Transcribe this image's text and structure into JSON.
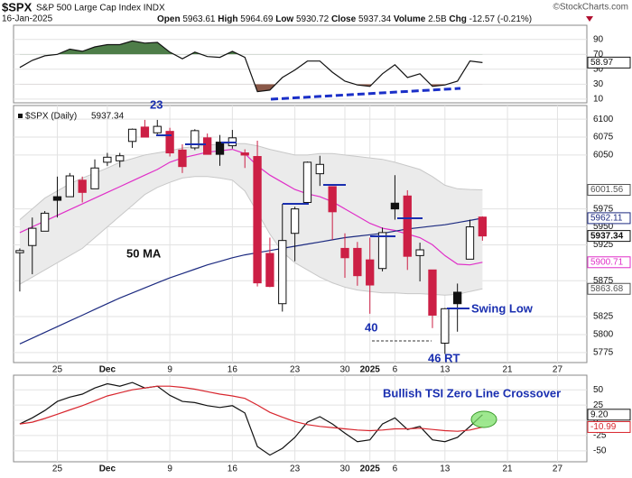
{
  "header": {
    "symbol": "$SPX",
    "name": "S&P 500 Large Cap Index INDX",
    "source": "©StockCharts.com",
    "date": "16-Jan-2025",
    "stats": [
      {
        "label": "Open",
        "value": 5963.61
      },
      {
        "label": "High",
        "value": 5964.69
      },
      {
        "label": "Low",
        "value": 5930.72
      },
      {
        "label": "Close",
        "value": 5937.34
      },
      {
        "label": "Volume",
        "value": "2.5B"
      }
    ],
    "change": {
      "label": "Chg",
      "value": -12.57,
      "pct": "(-0.21%)"
    }
  },
  "annotations": [
    "23",
    "50 MA",
    "40",
    "46 RT",
    "Swing Low",
    "Bullish TSI Zero Line Crossover"
  ],
  "chart_data": [
    {
      "type": "line",
      "x": [
        0,
        1,
        2,
        3,
        4,
        5,
        6,
        7,
        8,
        9,
        10,
        11,
        12,
        13,
        14,
        15,
        16,
        17,
        18,
        19,
        20,
        21,
        22,
        23,
        24,
        25,
        26,
        27,
        28,
        29,
        30,
        31,
        32,
        33,
        34,
        35,
        36,
        37
      ],
      "xlim": [
        -0.5,
        45.35
      ],
      "ylim": [
        5,
        109
      ],
      "yticks": [
        90,
        70,
        50,
        30,
        10
      ],
      "overbought": 70,
      "oversold": 30,
      "overbought_color": "#4e7d49",
      "oversold_color": "#8a5848",
      "series": [
        {
          "color": "#111111",
          "values": [
            52.4,
            62,
            68,
            70,
            77,
            74,
            80,
            83,
            83,
            88,
            85,
            86,
            73,
            64,
            73,
            67,
            66,
            74,
            66,
            20,
            22,
            39,
            49,
            61,
            61,
            46,
            34,
            29,
            27,
            44,
            56,
            39,
            44,
            27,
            29,
            34,
            61,
            58.97
          ]
        }
      ]
    },
    {
      "type": "candlestick",
      "label": "$SPX (Daily)",
      "x": [
        0,
        1,
        2,
        3,
        4,
        5,
        6,
        7,
        8,
        9,
        10,
        11,
        12,
        13,
        14,
        15,
        16,
        17,
        18,
        19,
        20,
        21,
        22,
        23,
        24,
        25,
        26,
        27,
        28,
        29,
        30,
        31,
        32,
        33,
        34,
        35,
        36,
        37
      ],
      "xlim": [
        -0.5,
        45.35
      ],
      "ylim": [
        5761,
        6119
      ],
      "yticks": [
        6100,
        6075,
        6050,
        5975,
        5950,
        5925,
        5875,
        5825,
        5800,
        5775
      ],
      "xticks": [
        {
          "value": 3,
          "label": "25"
        },
        {
          "value": 7,
          "label": "Dec"
        },
        {
          "value": 12,
          "label": "9"
        },
        {
          "value": 17,
          "label": "16"
        },
        {
          "value": 22,
          "label": "23"
        },
        {
          "value": 26,
          "label": "30"
        },
        {
          "value": 28,
          "label": "2025"
        },
        {
          "value": 30,
          "label": "6"
        },
        {
          "value": 34,
          "label": "13"
        },
        {
          "value": 39,
          "label": "21"
        },
        {
          "value": 43,
          "label": "27"
        }
      ],
      "up_color": "#111111",
      "down_color": "#cc1f45",
      "open": [
        5914,
        5924,
        5944,
        5992,
        5992,
        6015,
        6003,
        6040,
        6042,
        6069,
        6089,
        6081,
        6083,
        6057,
        6060,
        6074,
        6068,
        6063,
        6053,
        6048,
        5913,
        5843,
        5941,
        5984,
        6024,
        6006,
        5920,
        5920,
        5904,
        5892,
        5983,
        5993,
        5910,
        5890,
        5788,
        5859,
        5905,
        5963.61
      ],
      "high": [
        5920,
        5963,
        5972,
        6020,
        6025,
        6020,
        6044,
        6053,
        6053,
        6087,
        6099,
        6099,
        6088,
        6065,
        6086,
        6080,
        6078,
        6085,
        6058,
        6070,
        5935,
        5982,
        5978,
        6041,
        6049,
        6006,
        5941,
        5929,
        5935,
        5949,
        6022,
        6001,
        5928,
        5890,
        5837,
        5871,
        5960,
        5964.69
      ],
      "low": [
        5860,
        5884,
        5944,
        5963,
        5993,
        5984,
        6003,
        6035,
        6033,
        6060,
        6076,
        6079,
        6048,
        6025,
        6057,
        6051,
        6035,
        6059,
        6032,
        5867,
        5866,
        5832,
        5902,
        5983,
        6007,
        5932,
        5879,
        5868,
        5829,
        5888,
        5960,
        5890,
        5874,
        5809,
        5773,
        5804,
        5905,
        5930.72
      ],
      "close": [
        5917,
        5948,
        5969,
        5987,
        6021,
        5998,
        6032,
        6047,
        6049,
        6086,
        6075,
        6090,
        6053,
        6034,
        6084,
        6051,
        6051,
        6074,
        6050,
        5872,
        5867,
        5931,
        5975,
        6040,
        6037,
        5971,
        5907,
        5882,
        5869,
        5942,
        5975,
        5909,
        5918,
        5827,
        5836,
        5843,
        5950,
        5937.34
      ],
      "bands": {
        "color": "#ebebeb",
        "edge": "#c8c8c8",
        "upper": [
          5960,
          5975,
          5990,
          6000,
          6010,
          6018,
          6025,
          6032,
          6040,
          6045,
          6050,
          6053,
          6056,
          6060,
          6062,
          6064,
          6065,
          6066,
          6066,
          6063,
          6058,
          6054,
          6050,
          6050,
          6052,
          6052,
          6050,
          6048,
          6046,
          6044,
          6040,
          6035,
          6030,
          6020,
          6008,
          6003,
          6002,
          6001.56
        ],
        "lower": [
          5870,
          5880,
          5890,
          5900,
          5910,
          5920,
          5935,
          5950,
          5965,
          5980,
          5995,
          6005,
          6012,
          6018,
          6020,
          6020,
          6018,
          6015,
          6000,
          5970,
          5940,
          5915,
          5900,
          5890,
          5880,
          5872,
          5866,
          5862,
          5860,
          5858,
          5858,
          5857,
          5857,
          5856,
          5855,
          5856,
          5860,
          5863.68
        ]
      },
      "series": [
        {
          "color": "#e02fc8",
          "values": [
            5942,
            5950,
            5958,
            5966,
            5974,
            5982,
            5990,
            5998,
            6006,
            6014,
            6022,
            6030,
            6040,
            6046,
            6050,
            6054,
            6056,
            6058,
            6052,
            6035,
            6022,
            6012,
            6002,
            5996,
            5992,
            5985,
            5975,
            5965,
            5955,
            5948,
            5945,
            5940,
            5935,
            5925,
            5910,
            5898,
            5897,
            5900.71
          ]
        },
        {
          "color": "#1c2a80",
          "values": [
            5787,
            5795,
            5803,
            5811,
            5819,
            5827,
            5835,
            5843,
            5851,
            5858,
            5865,
            5872,
            5879,
            5885,
            5891,
            5897,
            5902,
            5907,
            5911,
            5914,
            5917,
            5920,
            5923,
            5926,
            5929,
            5932,
            5935,
            5937,
            5939,
            5941,
            5944,
            5947,
            5949,
            5951,
            5953,
            5956,
            5959,
            5962.11
          ]
        }
      ]
    },
    {
      "type": "line",
      "x": [
        0,
        1,
        2,
        3,
        4,
        5,
        6,
        7,
        8,
        9,
        10,
        11,
        12,
        13,
        14,
        15,
        16,
        17,
        18,
        19,
        20,
        21,
        22,
        23,
        24,
        25,
        26,
        27,
        28,
        29,
        30,
        31,
        32,
        33,
        34,
        35,
        36,
        37
      ],
      "xlim": [
        -0.5,
        45.35
      ],
      "ylim": [
        -68,
        74
      ],
      "yticks": [
        50,
        25,
        0,
        -25,
        -50
      ],
      "xticks": [
        {
          "value": 3,
          "label": "25"
        },
        {
          "value": 7,
          "label": "Dec"
        },
        {
          "value": 12,
          "label": "9"
        },
        {
          "value": 17,
          "label": "16"
        },
        {
          "value": 22,
          "label": "23"
        },
        {
          "value": 26,
          "label": "30"
        },
        {
          "value": 28,
          "label": "2025"
        },
        {
          "value": 30,
          "label": "6"
        },
        {
          "value": 34,
          "label": "13"
        },
        {
          "value": 39,
          "label": "21"
        },
        {
          "value": 43,
          "label": "27"
        }
      ],
      "series": [
        {
          "color": "#111111",
          "values": [
            -6,
            4,
            16,
            31,
            38,
            43,
            53,
            60,
            56,
            62,
            53,
            56,
            41,
            31,
            29,
            24,
            21,
            24,
            12,
            -43,
            -57,
            -46,
            -28,
            -3,
            6,
            -6,
            -21,
            -35,
            -32,
            -6,
            4,
            -15,
            -10,
            -32,
            -35,
            -28,
            -10,
            9.2
          ],
          "value_labels": [
            null,
            null,
            null,
            null,
            null,
            null,
            null,
            null,
            null,
            null,
            null,
            null,
            null,
            null,
            null,
            null,
            null,
            null,
            null,
            null,
            null,
            null,
            null,
            null,
            null,
            null,
            null,
            null,
            null,
            null,
            null,
            null,
            null,
            null,
            null,
            null,
            null,
            "9.20"
          ]
        },
        {
          "color": "#d8262e",
          "values": [
            -6,
            -3,
            3,
            10,
            17,
            24,
            32,
            40,
            45,
            50,
            53,
            56,
            56,
            54,
            51,
            47,
            43,
            40,
            36,
            25,
            13,
            5,
            -2,
            -7,
            -10,
            -12,
            -14,
            -16,
            -17,
            -16,
            -14,
            -14,
            -13,
            -15,
            -17,
            -18,
            -16,
            -10.99
          ]
        }
      ]
    }
  ]
}
